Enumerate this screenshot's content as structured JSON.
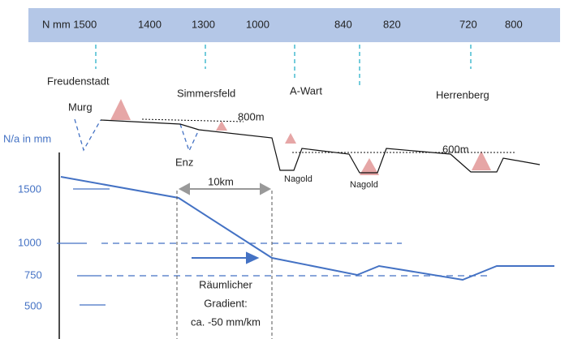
{
  "header": {
    "labels": [
      "N mm 1500",
      "1400",
      "1300",
      "1000",
      "840",
      "820",
      "720",
      "800"
    ]
  },
  "places": [
    "Freudenstadt",
    "Simmersfeld",
    "A-Wart",
    "Herrenberg"
  ],
  "rivers": [
    "Murg",
    "Enz",
    "Nagold",
    "Nagold"
  ],
  "heights": [
    "800m",
    "600m"
  ],
  "axis": {
    "title": "N/a in mm",
    "ticks": [
      "1500",
      "1000",
      "750",
      "500"
    ]
  },
  "distance": "10km",
  "gradient": [
    "Räumlicher",
    "Gradient:",
    "ca. -50 mm/km"
  ]
}
